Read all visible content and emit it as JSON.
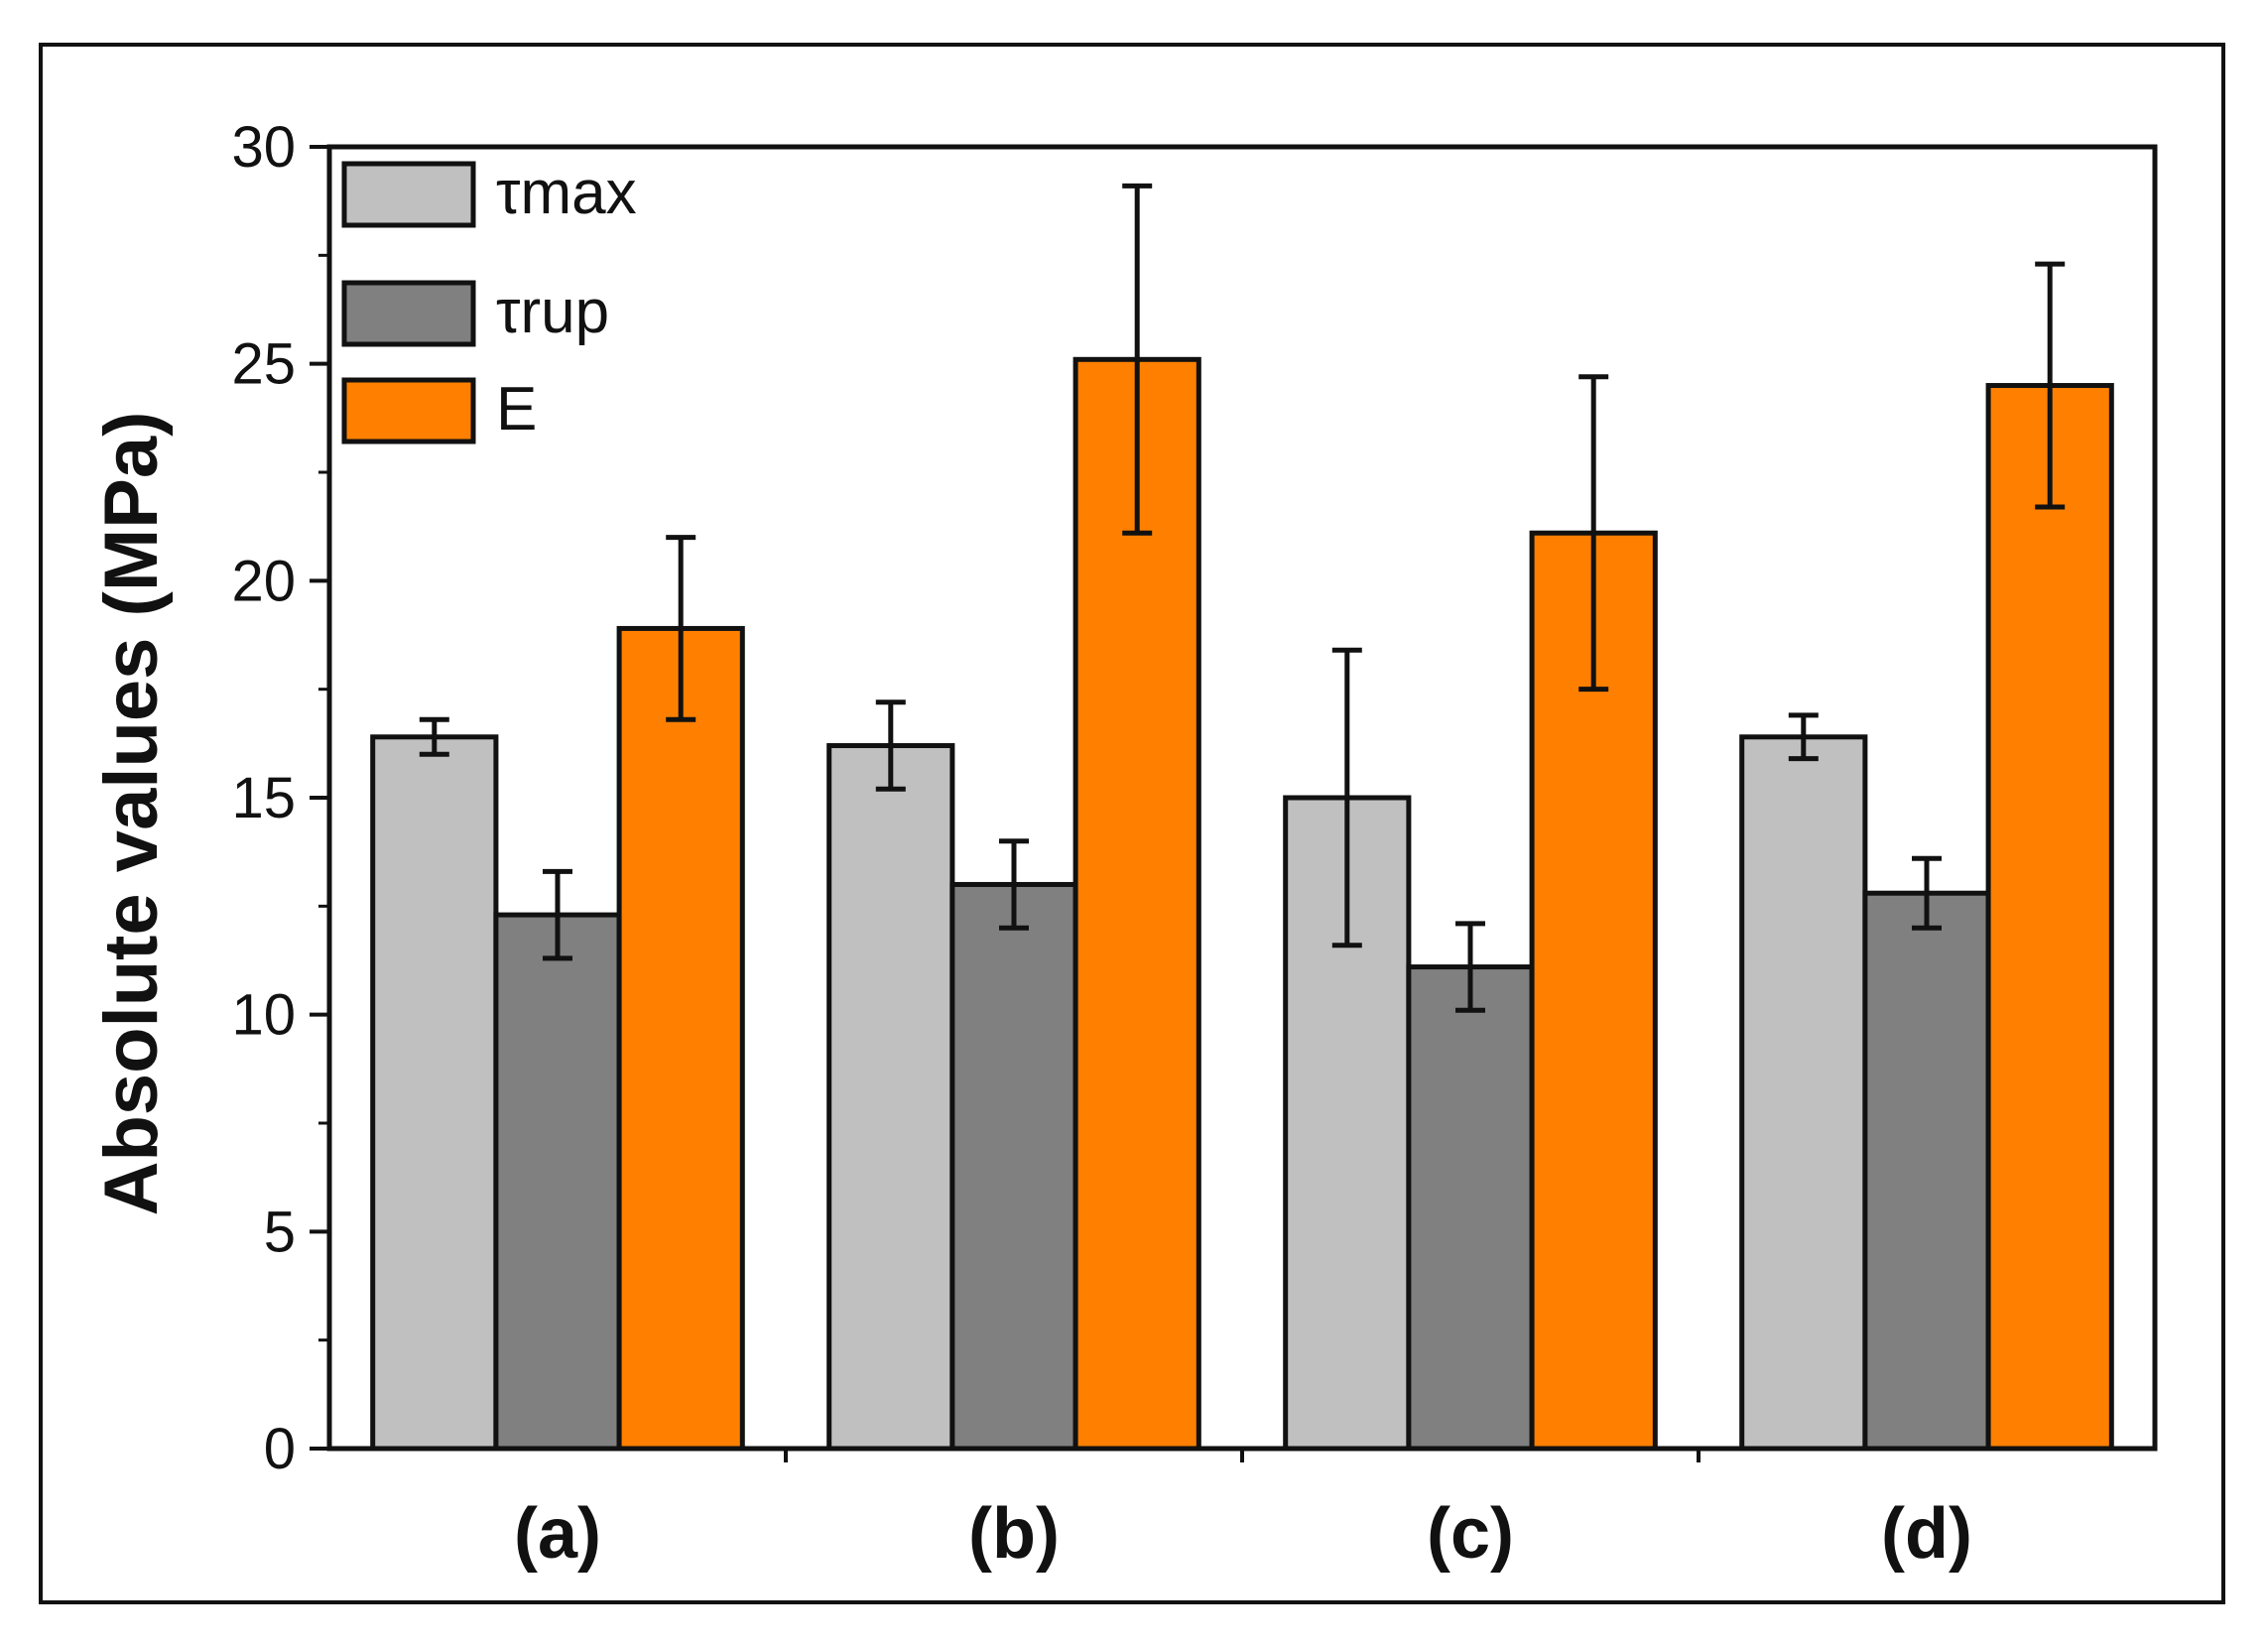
{
  "chart_data": {
    "type": "bar",
    "title": "",
    "xlabel": "",
    "ylabel": "Absolute values (MPa)",
    "ylim": [
      0,
      30
    ],
    "yticks": [
      0,
      5,
      10,
      15,
      20,
      25,
      30
    ],
    "yticks_labels": [
      "0",
      "5",
      "10",
      "15",
      "20",
      "25",
      "30"
    ],
    "categories": [
      "(a)",
      "(b)",
      "(c)",
      "(d)"
    ],
    "legend_position": "top-left",
    "series": [
      {
        "name": "τmax",
        "color": "#c0c0c0",
        "values": [
          16.4,
          16.2,
          15.0,
          16.4
        ],
        "errors": [
          0.4,
          1.0,
          3.4,
          0.5
        ]
      },
      {
        "name": "τrup",
        "color": "#808080",
        "values": [
          12.3,
          13.0,
          11.1,
          12.8
        ],
        "errors": [
          1.0,
          1.0,
          1.0,
          0.8
        ]
      },
      {
        "name": "E",
        "color": "#ff8000",
        "values": [
          18.9,
          25.1,
          21.1,
          24.5
        ],
        "errors": [
          2.1,
          4.0,
          3.6,
          2.8
        ]
      }
    ]
  }
}
